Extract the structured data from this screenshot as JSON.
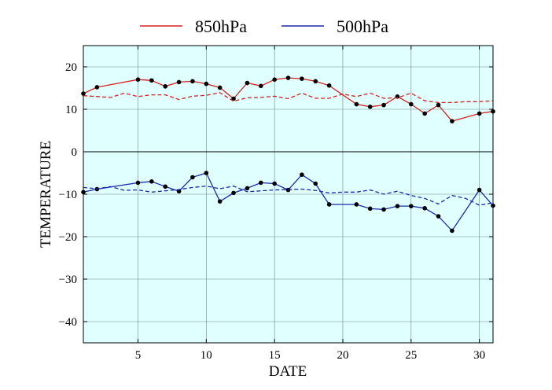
{
  "chart_data": {
    "type": "line",
    "title": "",
    "xlabel": "DATE",
    "ylabel": "TEMPERATURE",
    "xlim": [
      1,
      31
    ],
    "ylim": [
      -45,
      25
    ],
    "x_ticks": [
      5,
      10,
      15,
      20,
      25,
      30
    ],
    "y_ticks": [
      -40,
      -30,
      -20,
      -10,
      0,
      10,
      20
    ],
    "grid": true,
    "zero_line": true,
    "background": "#e0ffff",
    "legend": {
      "placement": "top-center",
      "entries": [
        "850hPa",
        "500hPa"
      ]
    },
    "series": [
      {
        "name": "850hPa",
        "color": "#d62020",
        "style": "solid-markers",
        "points": [
          [
            1,
            13.7
          ],
          [
            2,
            15.2
          ],
          [
            5,
            17
          ],
          [
            6,
            16.8
          ],
          [
            7,
            15.4
          ],
          [
            8,
            16.4
          ],
          [
            9,
            16.6
          ],
          [
            10,
            16
          ],
          [
            11,
            15.1
          ],
          [
            12,
            12.5
          ],
          [
            13,
            16.2
          ],
          [
            14,
            15.5
          ],
          [
            15,
            17
          ],
          [
            16,
            17.4
          ],
          [
            17,
            17.2
          ],
          [
            18,
            16.6
          ],
          [
            19,
            15.6
          ],
          [
            21,
            11.2
          ],
          [
            22,
            10.6
          ],
          [
            23,
            11
          ],
          [
            24,
            13
          ],
          [
            25,
            11.2
          ],
          [
            26,
            9
          ],
          [
            27,
            11
          ],
          [
            28,
            7.2
          ],
          [
            30,
            9
          ],
          [
            31,
            9.5
          ]
        ]
      },
      {
        "name": "",
        "color": "#d62020",
        "style": "dashed",
        "points": [
          [
            1,
            13.2
          ],
          [
            2,
            13
          ],
          [
            3,
            12.8
          ],
          [
            4,
            13.8
          ],
          [
            5,
            13
          ],
          [
            6,
            13.4
          ],
          [
            7,
            13.4
          ],
          [
            8,
            12.3
          ],
          [
            9,
            13.1
          ],
          [
            10,
            13.3
          ],
          [
            11,
            13.9
          ],
          [
            12,
            11.9
          ],
          [
            13,
            12.7
          ],
          [
            14,
            12.8
          ],
          [
            15,
            13.1
          ],
          [
            16,
            12.5
          ],
          [
            17,
            13.8
          ],
          [
            18,
            12.6
          ],
          [
            19,
            12.6
          ],
          [
            20,
            13.6
          ],
          [
            21,
            13
          ],
          [
            22,
            13.8
          ],
          [
            23,
            12.6
          ],
          [
            24,
            12.7
          ],
          [
            25,
            13.8
          ],
          [
            26,
            12
          ],
          [
            27,
            11.6
          ],
          [
            28,
            11.6
          ],
          [
            29,
            11.8
          ],
          [
            30,
            11.8
          ],
          [
            31,
            12
          ]
        ]
      },
      {
        "name": "500hPa",
        "color": "#1a2aa8",
        "style": "solid-markers",
        "points": [
          [
            1,
            -9.5
          ],
          [
            2,
            -8.8
          ],
          [
            5,
            -7.3
          ],
          [
            6,
            -7
          ],
          [
            7,
            -8.2
          ],
          [
            8,
            -9.3
          ],
          [
            9,
            -6
          ],
          [
            10,
            -5
          ],
          [
            11,
            -11.7
          ],
          [
            12,
            -9.7
          ],
          [
            13,
            -8.6
          ],
          [
            14,
            -7.3
          ],
          [
            15,
            -7.5
          ],
          [
            16,
            -9
          ],
          [
            17,
            -5.4
          ],
          [
            18,
            -7.5
          ],
          [
            19,
            -12.4
          ],
          [
            21,
            -12.4
          ],
          [
            22,
            -13.4
          ],
          [
            23,
            -13.6
          ],
          [
            24,
            -12.8
          ],
          [
            25,
            -12.8
          ],
          [
            26,
            -13.3
          ],
          [
            27,
            -15.2
          ],
          [
            28,
            -18.6
          ],
          [
            30,
            -9
          ],
          [
            31,
            -12.7
          ]
        ]
      },
      {
        "name": "",
        "color": "#1a2aa8",
        "style": "dashed",
        "points": [
          [
            1,
            -8.4
          ],
          [
            2,
            -8.7
          ],
          [
            3,
            -8.2
          ],
          [
            4,
            -9.1
          ],
          [
            5,
            -9
          ],
          [
            6,
            -9.5
          ],
          [
            7,
            -9.2
          ],
          [
            8,
            -8.9
          ],
          [
            9,
            -8.4
          ],
          [
            10,
            -8.1
          ],
          [
            11,
            -8.7
          ],
          [
            12,
            -8.1
          ],
          [
            13,
            -9.4
          ],
          [
            14,
            -9.2
          ],
          [
            15,
            -9
          ],
          [
            16,
            -8.9
          ],
          [
            17,
            -8.8
          ],
          [
            18,
            -9.1
          ],
          [
            19,
            -9.7
          ],
          [
            20,
            -9.5
          ],
          [
            21,
            -9.5
          ],
          [
            22,
            -9
          ],
          [
            23,
            -10
          ],
          [
            24,
            -9.3
          ],
          [
            25,
            -10.3
          ],
          [
            26,
            -11
          ],
          [
            27,
            -12.3
          ],
          [
            28,
            -10.3
          ],
          [
            29,
            -11
          ],
          [
            30,
            -12.6
          ],
          [
            31,
            -12
          ]
        ]
      }
    ]
  }
}
